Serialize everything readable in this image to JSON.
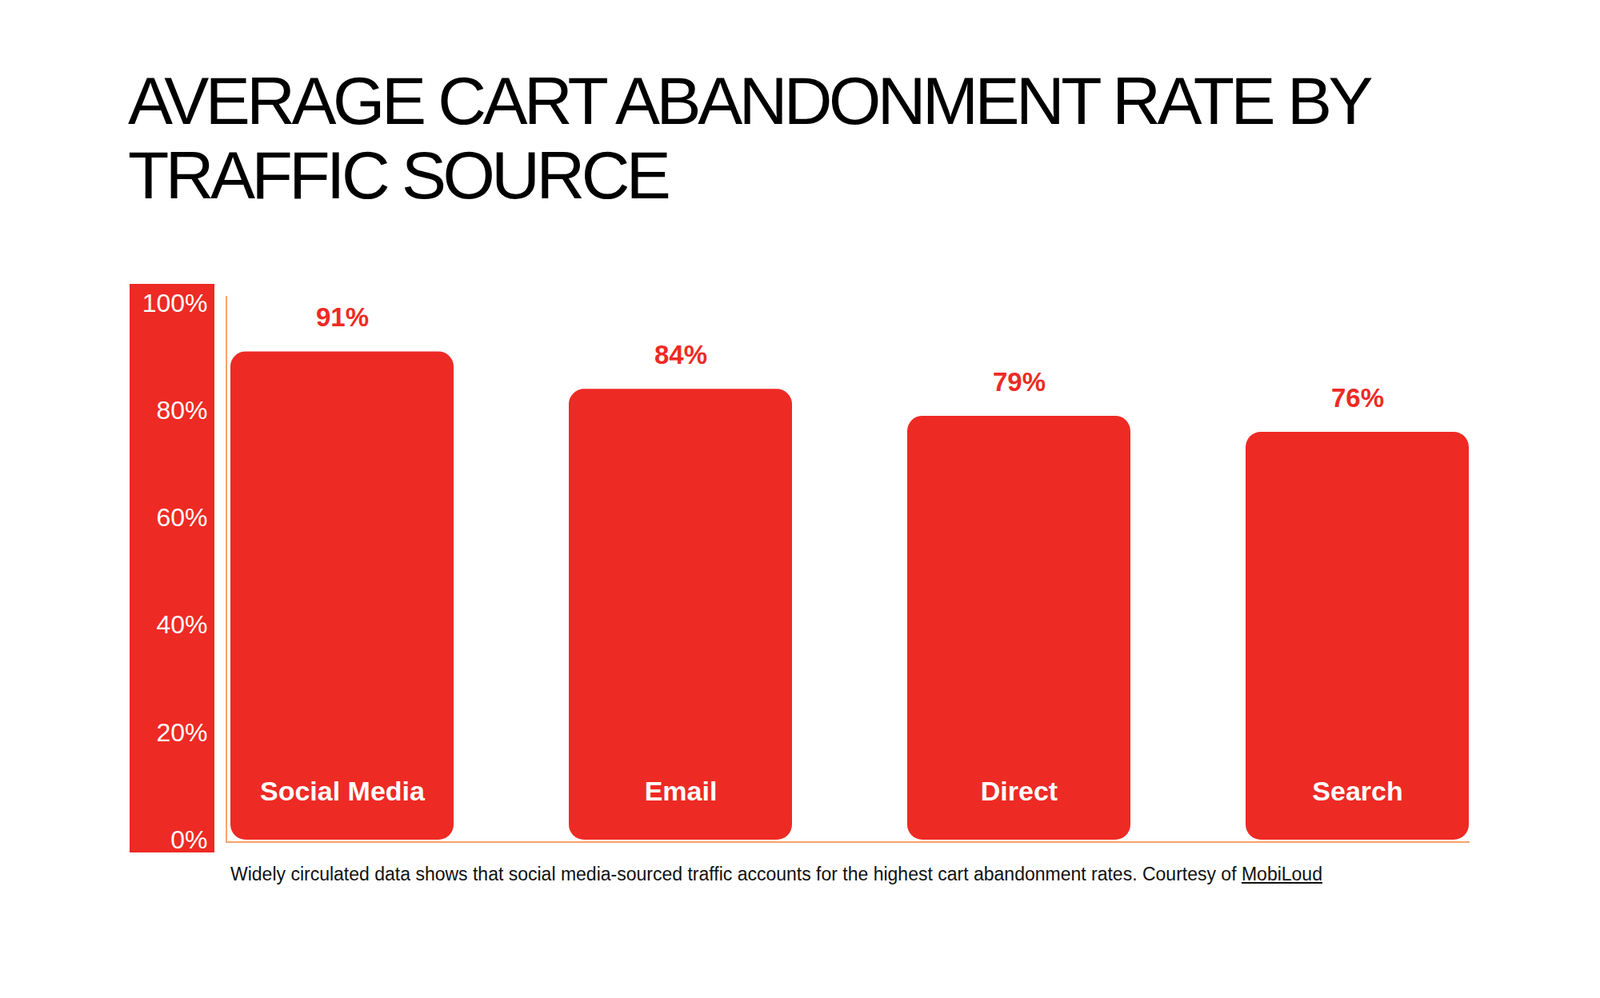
{
  "chart_data": {
    "type": "bar",
    "title": "AVERAGE CART ABANDONMENT RATE BY TRAFFIC SOURCE",
    "caption": "Widely circulated data shows that social media-sourced traffic accounts for the highest cart abandonment rates. Courtesy of",
    "source": "MobiLoud",
    "categories": [
      "Social Media",
      "Email",
      "Direct",
      "Search"
    ],
    "values": [
      91,
      84,
      79,
      76
    ],
    "value_labels": [
      "91%",
      "84%",
      "79%",
      "76%"
    ],
    "color": "#ee2a24",
    "ylim": [
      0,
      100
    ],
    "yticks": [
      {
        "value": 0,
        "label": "0%"
      },
      {
        "value": 20,
        "label": "20%"
      },
      {
        "value": 40,
        "label": "40%"
      },
      {
        "value": 60,
        "label": "60%"
      },
      {
        "value": 80,
        "label": "80%"
      },
      {
        "value": 100,
        "label": "100%"
      }
    ],
    "grid": false,
    "data_labels": true
  }
}
